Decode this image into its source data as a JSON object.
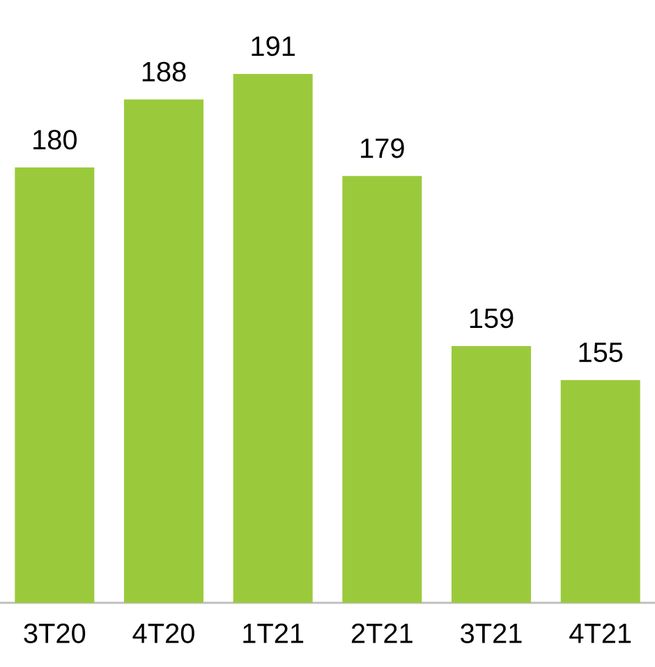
{
  "chart_data": {
    "type": "bar",
    "categories": [
      "3T20",
      "4T20",
      "1T21",
      "2T21",
      "3T21",
      "4T21"
    ],
    "values": [
      180,
      188,
      191,
      179,
      159,
      155
    ],
    "color": "#9aca3c",
    "ylim": [
      128.8,
      191
    ],
    "tick_labels": "x",
    "data_labels": true
  }
}
